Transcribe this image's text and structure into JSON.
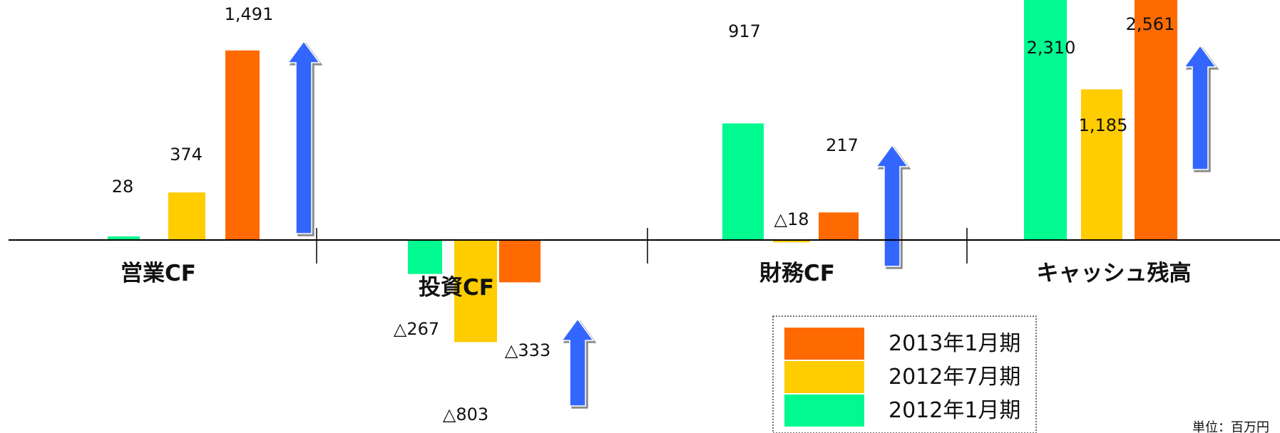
{
  "chart_data": {
    "type": "bar",
    "categories": [
      "営業CF",
      "投資CF",
      "財務CF",
      "キャッシュ残高"
    ],
    "series": [
      {
        "name": "2012年1月期",
        "color": "#00FA8F",
        "values": [
          28,
          -267,
          917,
          2310
        ],
        "labels": [
          "28",
          "△267",
          "917",
          "2,310"
        ]
      },
      {
        "name": "2012年7月期",
        "color": "#FFCC00",
        "values": [
          374,
          -803,
          -18,
          1185
        ],
        "labels": [
          "374",
          "△803",
          "△18",
          "1,185"
        ]
      },
      {
        "name": "2013年1月期",
        "color": "#FF6A00",
        "values": [
          1491,
          -333,
          217,
          2561
        ],
        "labels": [
          "1,491",
          "△333",
          "217",
          "2,561"
        ]
      }
    ],
    "trend_arrows": [
      "up",
      "up",
      "up",
      "up"
    ],
    "arrow_color": "#3366FF",
    "legend_order": [
      "2013年1月期",
      "2012年7月期",
      "2012年1月期"
    ],
    "legend_position": "bottom-center",
    "unit_label": "単位：百万円",
    "grid": false
  }
}
